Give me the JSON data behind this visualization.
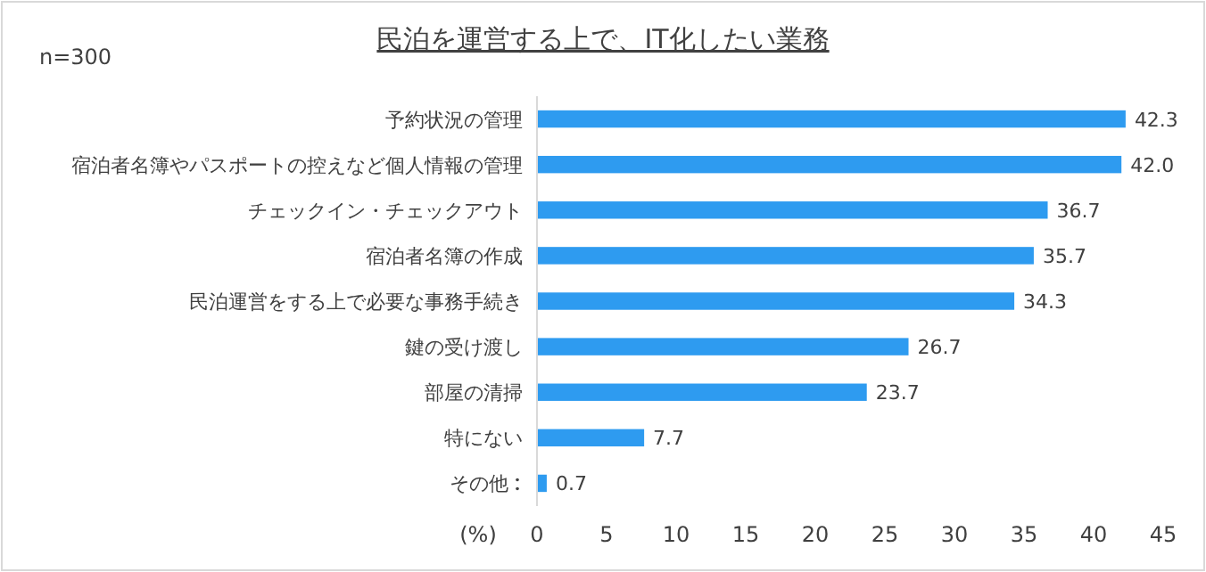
{
  "chart_data": {
    "type": "bar",
    "orientation": "horizontal",
    "title": "民泊を運営する上で、IT化したい業務",
    "annotations": [
      "n=300"
    ],
    "xlabel": "(%)",
    "categories": [
      "予約状況の管理",
      "宿泊者名簿やパスポートの控えなど個人情報の管理",
      "チェックイン・チェックアウト",
      "宿泊者名簿の作成",
      "民泊運営をする上で必要な事務手続き",
      "鍵の受け渡し",
      "部屋の清掃",
      "特にない",
      "その他"
    ],
    "values": [
      42.3,
      42.0,
      36.7,
      35.7,
      34.3,
      26.7,
      23.7,
      7.7,
      0.7
    ],
    "value_labels": [
      "42.3",
      "42.0",
      "36.7",
      "35.7",
      "34.3",
      "26.7",
      "23.7",
      "7.7",
      "0.7"
    ],
    "color": "#2e9bf0",
    "xlim": [
      0,
      45
    ],
    "xticks": [
      0,
      5,
      10,
      15,
      20,
      25,
      30,
      35,
      40,
      45
    ],
    "grid": false
  }
}
